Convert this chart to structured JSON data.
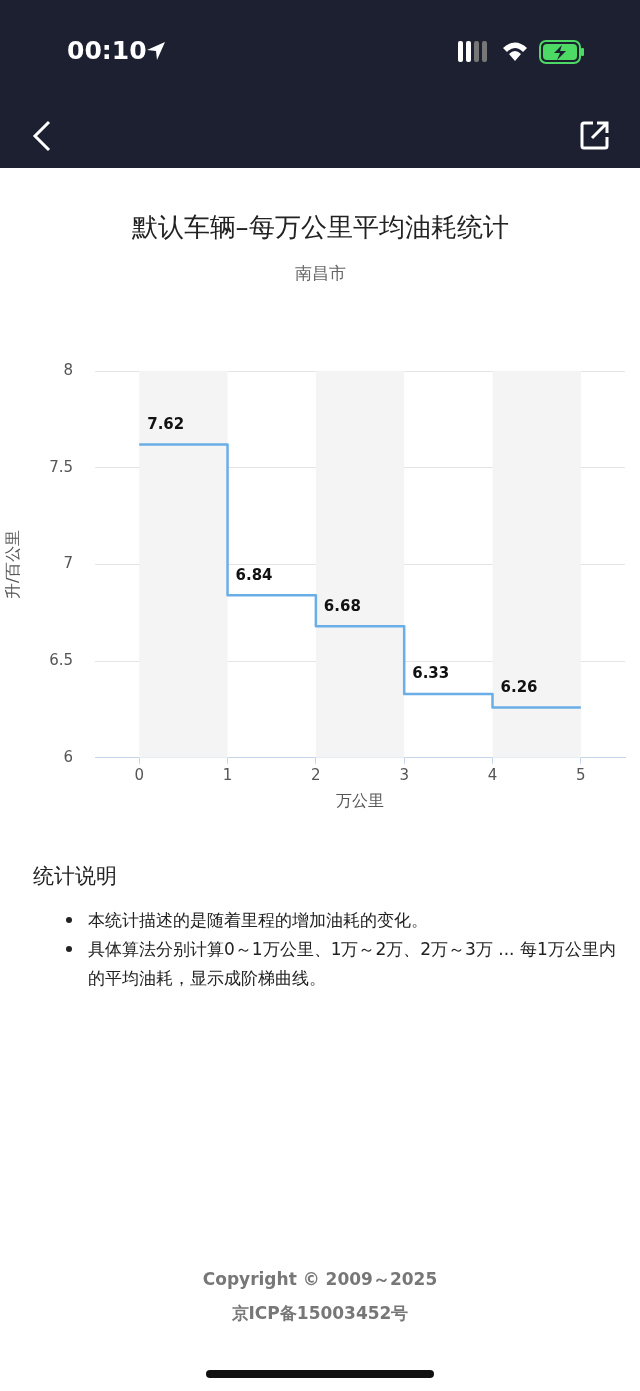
{
  "chart_data": {
    "type": "step",
    "title": "默认车辆–每万公里平均油耗统计",
    "subtitle": "南昌市",
    "xlabel": "万公里",
    "ylabel": "升/百公里",
    "x": [
      0,
      1,
      2,
      3,
      4,
      5
    ],
    "values": [
      7.62,
      6.84,
      6.68,
      6.33,
      6.26,
      6.26
    ],
    "value_labels": [
      "7.62",
      "6.84",
      "6.68",
      "6.33",
      "6.26",
      null
    ],
    "color": "#6aaee8",
    "xlim": [
      -0.5,
      5.5
    ],
    "xticks": [
      0,
      1,
      2,
      3,
      4,
      5
    ],
    "ylim": [
      6,
      8
    ],
    "yticks": [
      6,
      6.5,
      7,
      7.5,
      8
    ],
    "grid": "y",
    "legend": false,
    "marker": "none",
    "line_style": "solid",
    "bands": [
      {
        "axis": "x",
        "from": 0,
        "to": 1,
        "color": "#f4f4f4"
      },
      {
        "axis": "x",
        "from": 2,
        "to": 3,
        "color": "#f4f4f4"
      },
      {
        "axis": "x",
        "from": 4,
        "to": 5,
        "color": "#f4f4f4"
      }
    ],
    "annotations": [
      "00:10",
      "统计说明",
      "本统计描述的是随着里程的增加油耗的变化。",
      "具体算法分别计算0～1万公里、1万～2万、2万～3万 ... 每1万公里内的平均油耗，显示成阶梯曲线。",
      "Copyright © 2009～2025",
      "京ICP备15003452号"
    ]
  }
}
